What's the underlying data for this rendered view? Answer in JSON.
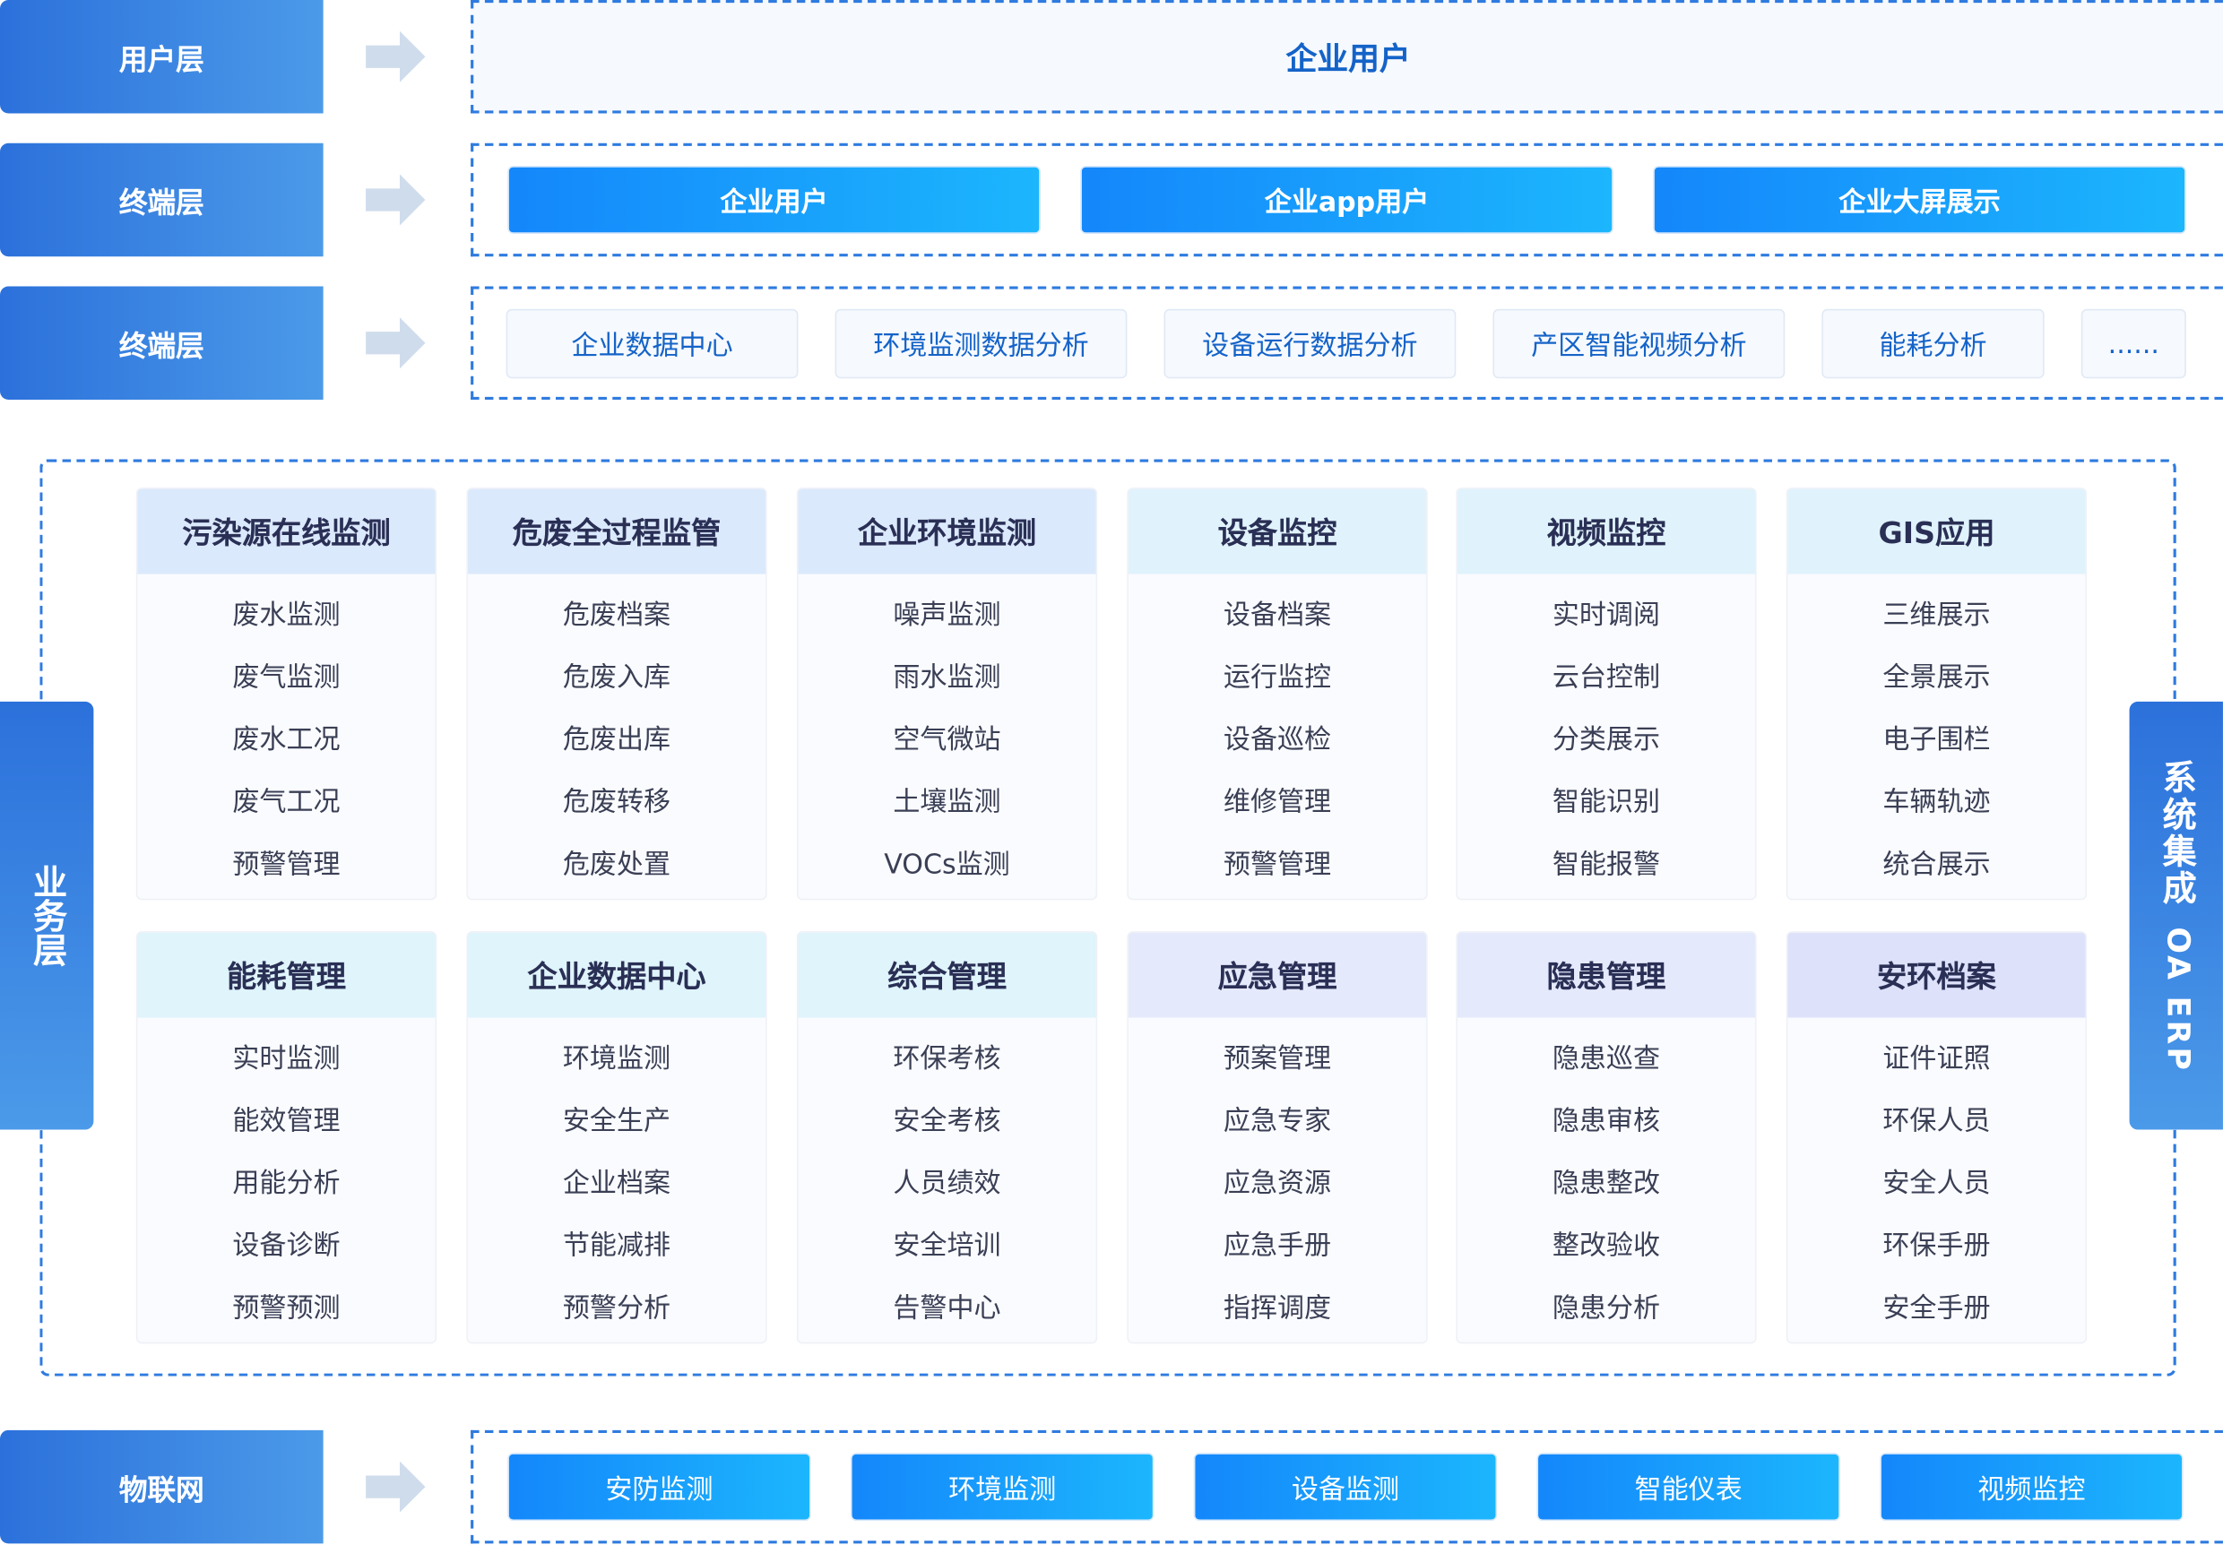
{
  "layers": {
    "user": "用户层",
    "terminal1": "终端层",
    "terminal2": "终端层",
    "business": "业务层",
    "iot": "物联网"
  },
  "user_row": {
    "title": "企业用户"
  },
  "terminal_row": [
    "企业用户",
    "企业app用户",
    "企业大屏展示"
  ],
  "analysis_row": [
    "企业数据中心",
    "环境监测数据分析",
    "设备运行数据分析",
    "产区智能视频分析",
    "能耗分析",
    "......"
  ],
  "integration": {
    "line1": "系统集成",
    "line2": "OA ERP"
  },
  "modules": [
    {
      "title": "污染源在线监测",
      "color": "#dbe9fc",
      "items": [
        "废水监测",
        "废气监测",
        "废水工况",
        "废气工况",
        "预警管理"
      ]
    },
    {
      "title": "危废全过程监管",
      "color": "#dbe9fc",
      "items": [
        "危废档案",
        "危废入库",
        "危废出库",
        "危废转移",
        "危废处置"
      ]
    },
    {
      "title": "企业环境监测",
      "color": "#dbe9fc",
      "items": [
        "噪声监测",
        "雨水监测",
        "空气微站",
        "土壤监测",
        "VOCs监测"
      ]
    },
    {
      "title": "设备监控",
      "color": "#e0f3fc",
      "items": [
        "设备档案",
        "运行监控",
        "设备巡检",
        "维修管理",
        "预警管理"
      ]
    },
    {
      "title": "视频监控",
      "color": "#e0f3fc",
      "items": [
        "实时调阅",
        "云台控制",
        "分类展示",
        "智能识别",
        "智能报警"
      ]
    },
    {
      "title": "GIS应用",
      "color": "#e0f3fc",
      "items": [
        "三维展示",
        "全景展示",
        "电子围栏",
        "车辆轨迹",
        "统合展示"
      ]
    },
    {
      "title": "能耗管理",
      "color": "#dff4fb",
      "items": [
        "实时监测",
        "能效管理",
        "用能分析",
        "设备诊断",
        "预警预测"
      ]
    },
    {
      "title": "企业数据中心",
      "color": "#dff4fb",
      "items": [
        "环境监测",
        "安全生产",
        "企业档案",
        "节能减排",
        "预警分析"
      ]
    },
    {
      "title": "综合管理",
      "color": "#dff4fb",
      "items": [
        "环保考核",
        "安全考核",
        "人员绩效",
        "安全培训",
        "告警中心"
      ]
    },
    {
      "title": "应急管理",
      "color": "#e5e9fc",
      "items": [
        "预案管理",
        "应急专家",
        "应急资源",
        "应急手册",
        "指挥调度"
      ]
    },
    {
      "title": "隐患管理",
      "color": "#e5e9fc",
      "items": [
        "隐患巡查",
        "隐患审核",
        "隐患整改",
        "整改验收",
        "隐患分析"
      ]
    },
    {
      "title": "安环档案",
      "color": "#dde1fa",
      "items": [
        "证件证照",
        "环保人员",
        "安全人员",
        "环保手册",
        "安全手册"
      ]
    }
  ],
  "iot_row": [
    "安防监测",
    "环境监测",
    "设备监测",
    "智能仪表",
    "视频监控"
  ],
  "colors": {
    "accent": "#2f7be0",
    "layer_gradient_start": "#2c71db",
    "layer_gradient_end": "#4b9ae9",
    "button_start": "#1487fb",
    "button_end": "#1cb6fd"
  }
}
